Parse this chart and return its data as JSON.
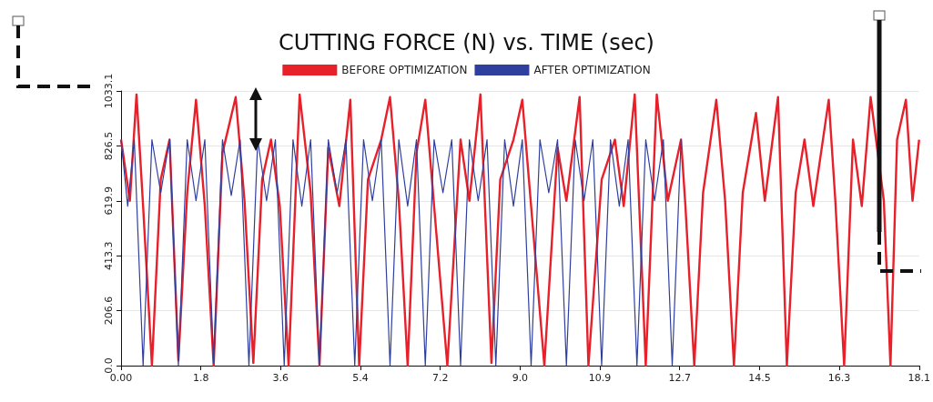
{
  "chart_data": {
    "type": "line",
    "title": "CUTTING FORCE (N) vs. TIME (sec)",
    "xlim": [
      0,
      18.1
    ],
    "xticks": [
      {
        "value": 0,
        "label": "0.00"
      },
      {
        "value": 1.81,
        "label": "1.8"
      },
      {
        "value": 3.62,
        "label": "3.6"
      },
      {
        "value": 5.43,
        "label": "5.4"
      },
      {
        "value": 7.24,
        "label": "7.2"
      },
      {
        "value": 9.05,
        "label": "9.0"
      },
      {
        "value": 10.86,
        "label": "10.9"
      },
      {
        "value": 12.67,
        "label": "12.7"
      },
      {
        "value": 14.48,
        "label": "14.5"
      },
      {
        "value": 16.29,
        "label": "16.3"
      },
      18.1
    ],
    "ylim": [
      0,
      1033.1
    ],
    "yticks": [
      {
        "value": 0,
        "label": "0.0"
      },
      206.6,
      413.3,
      619.9,
      826.5,
      1033.1
    ],
    "grid": "y",
    "legend": "top",
    "marker": "none",
    "line_style": "solid",
    "series": [
      {
        "name": "BEFORE OPTIMIZATION",
        "color": "#e8202a",
        "x": [
          0,
          0.2,
          0.35,
          0.5,
          0.7,
          0.9,
          1.1,
          1.3,
          1.5,
          1.7,
          1.9,
          2.1,
          2.3,
          2.6,
          2.8,
          3.0,
          3.2,
          3.4,
          3.6,
          3.8,
          4.05,
          4.3,
          4.5,
          4.7,
          4.95,
          5.2,
          5.4,
          5.6,
          5.9,
          6.1,
          6.3,
          6.5,
          6.7,
          6.9,
          7.1,
          7.4,
          7.7,
          7.9,
          8.15,
          8.4,
          8.6,
          8.9,
          9.1,
          9.3,
          9.6,
          9.9,
          10.1,
          10.4,
          10.6,
          10.9,
          11.2,
          11.4,
          11.65,
          11.9,
          12.15,
          12.4,
          12.7,
          12.8,
          13.0,
          13.2,
          13.5,
          13.7,
          13.9,
          14.1,
          14.4,
          14.6,
          14.9,
          15.1,
          15.3,
          15.5,
          15.7,
          16.05,
          16.2,
          16.4,
          16.6,
          16.8,
          17.0,
          17.3,
          17.45,
          17.6,
          17.8,
          17.95,
          18.1
        ],
        "values": [
          850,
          620,
          1020,
          600,
          0,
          700,
          850,
          20,
          650,
          1000,
          600,
          0,
          800,
          1010,
          620,
          10,
          700,
          850,
          600,
          0,
          1020,
          650,
          0,
          820,
          600,
          1000,
          0,
          700,
          850,
          1010,
          620,
          0,
          800,
          1000,
          600,
          0,
          850,
          620,
          1020,
          10,
          700,
          850,
          1000,
          600,
          0,
          820,
          620,
          1010,
          0,
          700,
          850,
          600,
          1020,
          0,
          1020,
          620,
          850,
          600,
          0,
          650,
          1000,
          620,
          0,
          650,
          950,
          620,
          1010,
          0,
          650,
          850,
          600,
          1000,
          620,
          0,
          850,
          600,
          1010,
          620,
          0,
          850,
          1000,
          620,
          850
        ]
      },
      {
        "name": "AFTER OPTIMIZATION",
        "color": "#2f3f9e",
        "x": [
          0,
          0.15,
          0.3,
          0.5,
          0.7,
          0.9,
          1.1,
          1.3,
          1.5,
          1.7,
          1.9,
          2.1,
          2.3,
          2.5,
          2.7,
          2.9,
          3.1,
          3.3,
          3.5,
          3.7,
          3.9,
          4.1,
          4.3,
          4.5,
          4.7,
          4.9,
          5.1,
          5.3,
          5.5,
          5.7,
          5.9,
          6.1,
          6.3,
          6.5,
          6.7,
          6.9,
          7.1,
          7.3,
          7.5,
          7.7,
          7.9,
          8.1,
          8.3,
          8.5,
          8.7,
          8.9,
          9.1,
          9.3,
          9.5,
          9.7,
          9.9,
          10.1,
          10.3,
          10.5,
          10.7,
          10.9,
          11.1,
          11.3,
          11.5,
          11.7,
          11.9,
          12.1,
          12.3,
          12.5,
          12.7
        ],
        "values": [
          850,
          600,
          850,
          0,
          850,
          650,
          850,
          0,
          850,
          620,
          850,
          10,
          850,
          640,
          850,
          0,
          850,
          620,
          850,
          0,
          850,
          600,
          850,
          0,
          850,
          650,
          850,
          0,
          850,
          620,
          850,
          0,
          850,
          600,
          850,
          0,
          850,
          650,
          850,
          0,
          850,
          620,
          850,
          0,
          850,
          600,
          850,
          0,
          850,
          650,
          850,
          0,
          850,
          620,
          850,
          0,
          850,
          600,
          850,
          0,
          850,
          620,
          850,
          0,
          850
        ]
      }
    ]
  }
}
